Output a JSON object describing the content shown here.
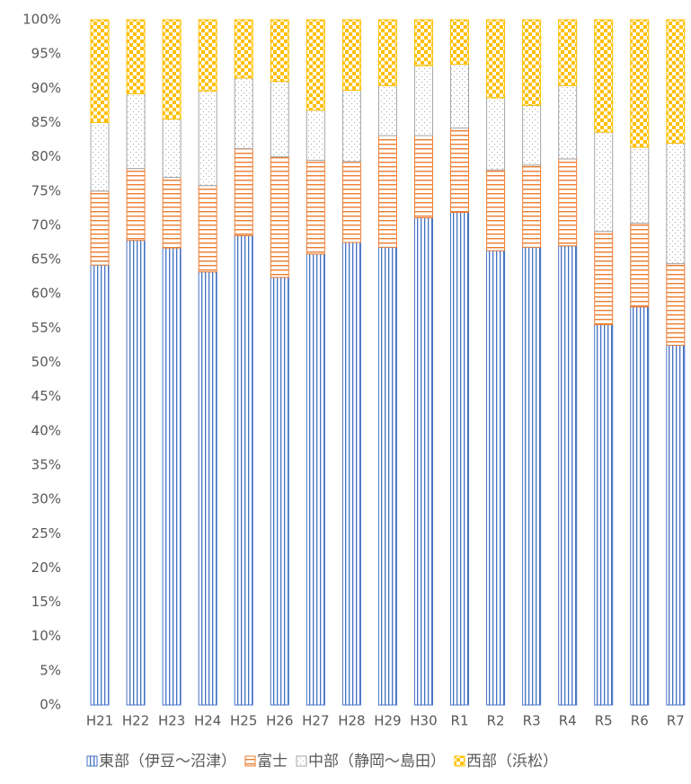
{
  "chart_data": {
    "type": "stacked_bar",
    "categories": [
      "H21",
      "H22",
      "H23",
      "H24",
      "H25",
      "H26",
      "H27",
      "H28",
      "H29",
      "H30",
      "R1",
      "R2",
      "R3",
      "R4",
      "R5",
      "R6",
      "R7"
    ],
    "series": [
      {
        "name": "東部（伊豆～沼津）",
        "color": "#4472c4",
        "values": [
          64.2,
          67.8,
          66.7,
          63.2,
          68.5,
          62.4,
          65.8,
          67.5,
          66.8,
          71.1,
          71.9,
          66.3,
          66.8,
          67,
          55.5,
          58.1,
          52.5
        ]
      },
      {
        "name": "富士",
        "color": "#ed7d31",
        "values": [
          10.8,
          10.5,
          10.3,
          12.6,
          12.7,
          17.6,
          13.7,
          11.8,
          16.3,
          12,
          12.3,
          11.8,
          12,
          12.7,
          13.6,
          12.2,
          11.9
        ]
      },
      {
        "name": "中部（静岡～島田）",
        "color": "#a5a5a5",
        "values": [
          10,
          10.9,
          8.5,
          13.8,
          10.3,
          11,
          7.3,
          10.4,
          7.3,
          10.2,
          9.3,
          10.5,
          8.7,
          10.7,
          14.5,
          11.1,
          17.6
        ]
      },
      {
        "name": "西部（浜松）",
        "color": "#ffc000",
        "values": [
          15,
          10.8,
          14.5,
          10.4,
          8.5,
          9,
          13.2,
          10.3,
          9.6,
          6.7,
          6.5,
          11.4,
          12.5,
          9.6,
          16.4,
          18.6,
          18
        ]
      }
    ],
    "ylim": [
      0,
      100
    ],
    "yticks": [
      {
        "value": 0,
        "label": "0%"
      },
      {
        "value": 5,
        "label": "5%"
      },
      {
        "value": 10,
        "label": "10%"
      },
      {
        "value": 15,
        "label": "15%"
      },
      {
        "value": 20,
        "label": "20%"
      },
      {
        "value": 25,
        "label": "25%"
      },
      {
        "value": 30,
        "label": "30%"
      },
      {
        "value": 35,
        "label": "35%"
      },
      {
        "value": 40,
        "label": "40%"
      },
      {
        "value": 45,
        "label": "45%"
      },
      {
        "value": 50,
        "label": "50%"
      },
      {
        "value": 55,
        "label": "55%"
      },
      {
        "value": 60,
        "label": "60%"
      },
      {
        "value": 65,
        "label": "65%"
      },
      {
        "value": 70,
        "label": "70%"
      },
      {
        "value": 75,
        "label": "75%"
      },
      {
        "value": 80,
        "label": "80%"
      },
      {
        "value": 85,
        "label": "85%"
      },
      {
        "value": 90,
        "label": "90%"
      },
      {
        "value": 95,
        "label": "95%"
      },
      {
        "value": 100,
        "label": "100%"
      }
    ],
    "legend": "bottom"
  }
}
